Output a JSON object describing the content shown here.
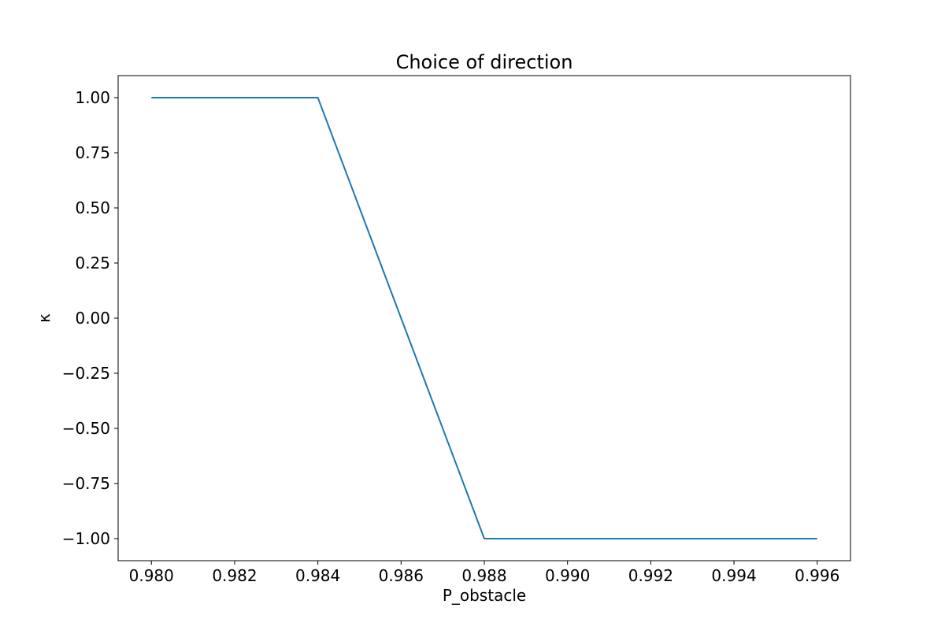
{
  "chart_data": {
    "type": "line",
    "title": "Choice of direction",
    "xlabel": "P_obstacle",
    "ylabel": "κ",
    "xlim": [
      0.9792,
      0.9968
    ],
    "ylim": [
      -1.1,
      1.1
    ],
    "xticks": [
      0.98,
      0.982,
      0.984,
      0.986,
      0.988,
      0.99,
      0.992,
      0.994,
      0.996
    ],
    "xtick_labels": [
      "0.980",
      "0.982",
      "0.984",
      "0.986",
      "0.988",
      "0.990",
      "0.992",
      "0.994",
      "0.996"
    ],
    "yticks": [
      1.0,
      0.75,
      0.5,
      0.25,
      0.0,
      -0.25,
      -0.5,
      -0.75,
      -1.0
    ],
    "ytick_labels": [
      "1.00",
      "0.75",
      "0.50",
      "0.25",
      "0.00",
      "−0.25",
      "−0.50",
      "−0.75",
      "−1.00"
    ],
    "grid": false,
    "series": [
      {
        "color": "#1f77b4",
        "x": [
          0.98,
          0.984,
          0.988,
          0.996
        ],
        "y": [
          1.0,
          1.0,
          -1.0,
          -1.0
        ]
      }
    ]
  }
}
